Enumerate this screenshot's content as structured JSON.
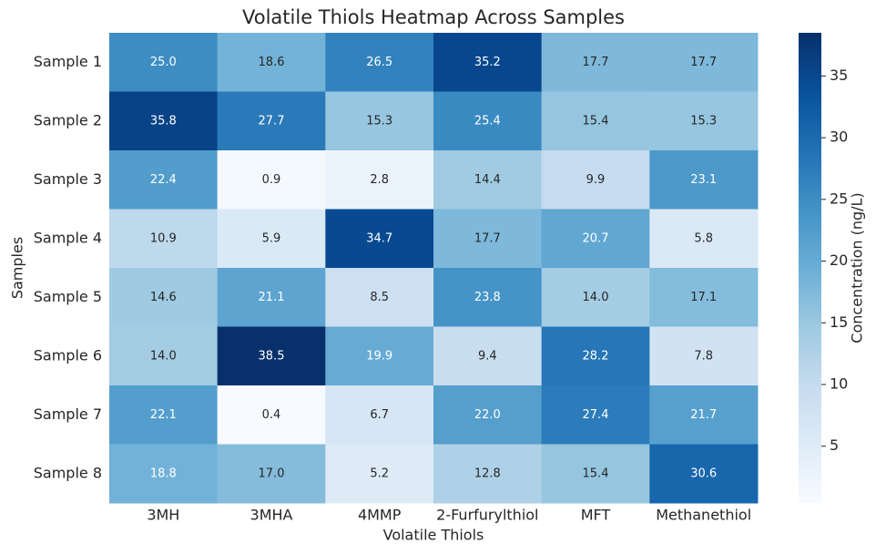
{
  "chart_data": {
    "type": "heatmap",
    "title": "Volatile Thiols Heatmap Across Samples",
    "x_label": "Volatile Thiols",
    "y_label": "Samples",
    "columns": [
      "3MH",
      "3MHA",
      "4MMP",
      "2-Furfurylthiol",
      "MFT",
      "Methanethiol"
    ],
    "rows": [
      "Sample 1",
      "Sample 2",
      "Sample 3",
      "Sample 4",
      "Sample 5",
      "Sample 6",
      "Sample 7",
      "Sample 8"
    ],
    "values": [
      [
        25.0,
        18.6,
        26.5,
        35.2,
        17.7,
        17.7
      ],
      [
        35.8,
        27.7,
        15.3,
        25.4,
        15.4,
        15.3
      ],
      [
        22.4,
        0.9,
        2.8,
        14.4,
        9.9,
        23.1
      ],
      [
        10.9,
        5.9,
        34.7,
        17.7,
        20.7,
        5.8
      ],
      [
        14.6,
        21.1,
        8.5,
        23.8,
        14.0,
        17.1
      ],
      [
        14.0,
        38.5,
        19.9,
        9.4,
        28.2,
        7.8
      ],
      [
        22.1,
        0.4,
        6.7,
        22.0,
        27.4,
        21.7
      ],
      [
        18.8,
        17.0,
        5.2,
        12.8,
        15.4,
        30.6
      ]
    ],
    "value_labels": [
      [
        "25.0",
        "18.6",
        "26.5",
        "35.2",
        "17.7",
        "17.7"
      ],
      [
        "35.8",
        "27.7",
        "15.3",
        "25.4",
        "15.4",
        "15.3"
      ],
      [
        "22.4",
        "0.9",
        "2.8",
        "14.4",
        "9.9",
        "23.1"
      ],
      [
        "10.9",
        "5.9",
        "34.7",
        "17.7",
        "20.7",
        "5.8"
      ],
      [
        "14.6",
        "21.1",
        "8.5",
        "23.8",
        "14.0",
        "17.1"
      ],
      [
        "14.0",
        "38.5",
        "19.9",
        "9.4",
        "28.2",
        "7.8"
      ],
      [
        "22.1",
        "0.4",
        "6.7",
        "22.0",
        "27.4",
        "21.7"
      ],
      [
        "18.8",
        "17.0",
        "5.2",
        "12.8",
        "15.4",
        "30.6"
      ]
    ],
    "colormap": "Blues",
    "colorbar_label": "Concentration (ng/L)",
    "colorbar_lim": [
      0.4,
      38.5
    ],
    "colorbar_ticks": [
      5,
      10,
      15,
      20,
      25,
      30,
      35
    ]
  }
}
